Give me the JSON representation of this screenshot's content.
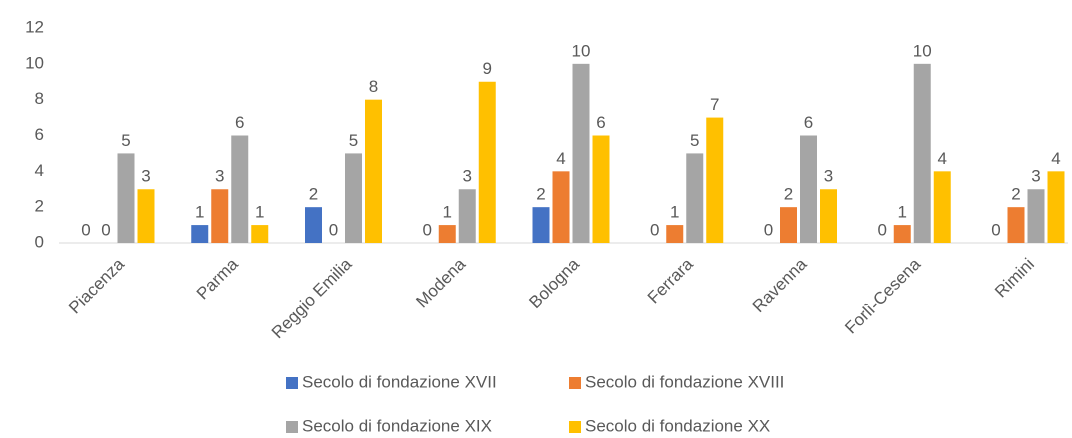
{
  "chart_data": {
    "type": "bar",
    "categories": [
      "Piacenza",
      "Parma",
      "Reggio Emilia",
      "Modena",
      "Bologna",
      "Ferrara",
      "Ravenna",
      "Forlì-Cesena",
      "Rimini"
    ],
    "series": [
      {
        "name": "Secolo di fondazione XVII",
        "color": "#4472c4",
        "values": [
          0,
          1,
          2,
          0,
          2,
          0,
          0,
          0,
          0
        ]
      },
      {
        "name": "Secolo di fondazione XVIII",
        "color": "#ed7d31",
        "values": [
          0,
          3,
          0,
          1,
          4,
          1,
          2,
          1,
          2
        ]
      },
      {
        "name": "Secolo di fondazione XIX",
        "color": "#a5a5a5",
        "values": [
          5,
          6,
          5,
          3,
          10,
          5,
          6,
          10,
          3
        ]
      },
      {
        "name": "Secolo di fondazione XX",
        "color": "#ffc000",
        "values": [
          3,
          1,
          8,
          9,
          6,
          7,
          3,
          4,
          4
        ]
      }
    ],
    "ylim": [
      0,
      12
    ],
    "yticks": [
      0,
      2,
      4,
      6,
      8,
      10,
      12
    ],
    "grid": false,
    "legend": "bottom"
  }
}
